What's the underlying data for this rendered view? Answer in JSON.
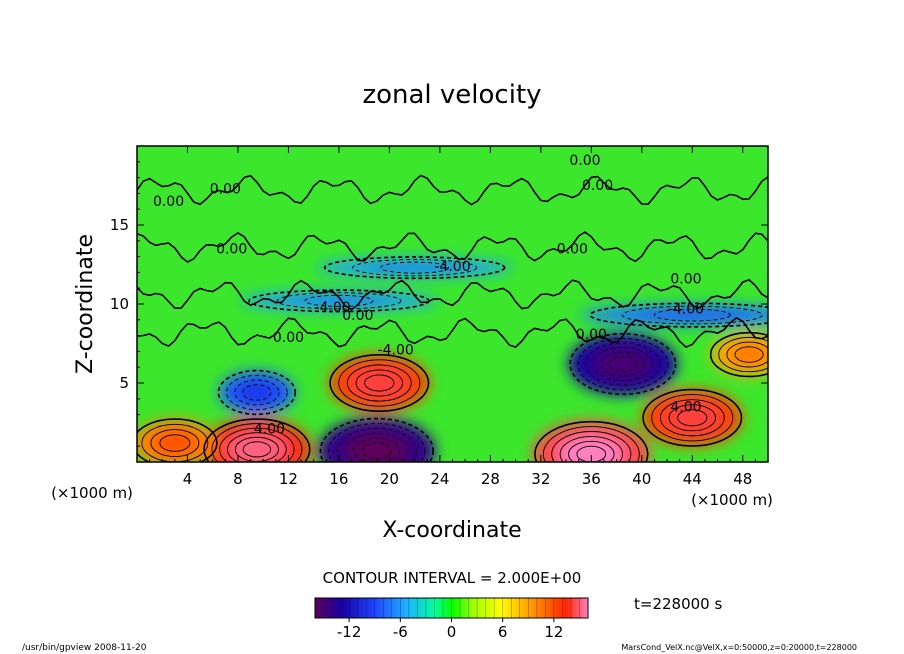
{
  "chart_data": {
    "type": "heatmap",
    "title": "zonal velocity",
    "xlabel": "X-coordinate",
    "ylabel": "Z-coordinate",
    "x_unit_left": "(×1000 m)",
    "x_unit_right": "(×1000 m)",
    "x_ticks": [
      4,
      8,
      12,
      16,
      20,
      24,
      28,
      32,
      36,
      40,
      44,
      48
    ],
    "y_ticks": [
      5,
      10,
      15
    ],
    "xlim": [
      0,
      50
    ],
    "ylim": [
      0,
      20
    ],
    "contour_interval_text": "CONTOUR INTERVAL = 2.000E+00",
    "time_text": "t=228000 s",
    "colorbar": {
      "range": [
        -16,
        16
      ],
      "ticks": [
        "-12",
        "-6",
        "0",
        "6",
        "12"
      ],
      "tick_values": [
        -12,
        -6,
        0,
        6,
        12
      ]
    },
    "contour_labels": [
      {
        "text": "0.00",
        "x": 2.5,
        "y": 16.2
      },
      {
        "text": "0.00",
        "x": 7.0,
        "y": 17.0
      },
      {
        "text": "0.00",
        "x": 7.5,
        "y": 13.2
      },
      {
        "text": "0.00",
        "x": 35.5,
        "y": 18.8
      },
      {
        "text": "0.00",
        "x": 36.5,
        "y": 17.2
      },
      {
        "text": "0.00",
        "x": 34.5,
        "y": 13.2
      },
      {
        "text": "0.00",
        "x": 43.5,
        "y": 11.3
      },
      {
        "text": "0.00",
        "x": 12.0,
        "y": 7.6
      },
      {
        "text": "0.00",
        "x": 17.5,
        "y": 9.0
      },
      {
        "text": "0.00",
        "x": 36.0,
        "y": 7.8
      },
      {
        "text": "-4.00",
        "x": 25.0,
        "y": 12.1
      },
      {
        "text": "-4.00",
        "x": 15.5,
        "y": 9.5
      },
      {
        "text": "-4.00",
        "x": 43.5,
        "y": 9.4
      },
      {
        "text": "-4.00",
        "x": 20.5,
        "y": 6.8
      },
      {
        "text": "4.00",
        "x": 10.5,
        "y": 1.8
      },
      {
        "text": "4.00",
        "x": 43.5,
        "y": 3.2
      }
    ],
    "features": [
      {
        "kind": "jet",
        "value": 13,
        "x": 9.5,
        "y": 0.8
      },
      {
        "kind": "jet",
        "value": 10,
        "x": 3.0,
        "y": 1.2
      },
      {
        "kind": "jet",
        "value": -14,
        "x": 19.0,
        "y": 0.7
      },
      {
        "kind": "jet",
        "value": 14,
        "x": 36.0,
        "y": 0.5
      },
      {
        "kind": "jet",
        "value": 12,
        "x": 44.0,
        "y": 2.8
      },
      {
        "kind": "jet",
        "value": 12,
        "x": 19.2,
        "y": 5.0
      },
      {
        "kind": "jet",
        "value": -13,
        "x": 38.5,
        "y": 6.2
      },
      {
        "kind": "jet",
        "value": -9,
        "x": 9.5,
        "y": 4.4
      },
      {
        "kind": "jet",
        "value": 9,
        "x": 48.5,
        "y": 6.8
      },
      {
        "kind": "band",
        "value": -7,
        "x": 22.0,
        "y": 12.3
      },
      {
        "kind": "band",
        "value": -7,
        "x": 16.0,
        "y": 10.2
      },
      {
        "kind": "band",
        "value": -8,
        "x": 44.0,
        "y": 9.3
      }
    ]
  },
  "footer": {
    "left": "/usr/bin/gpview  2008-11-20",
    "right": "MarsCond_VelX.nc@VelX,x=0:50000,z=0:20000,t=228000"
  },
  "colors": {
    "background": "#ffffff",
    "frame": "#000000",
    "colormap": [
      "#5b005b",
      "#1a00a6",
      "#1e46ff",
      "#1eb4ff",
      "#00ff9c",
      "#00ff00",
      "#a0ff00",
      "#ffff00",
      "#ff9100",
      "#ff2400",
      "#ff80c0"
    ]
  }
}
